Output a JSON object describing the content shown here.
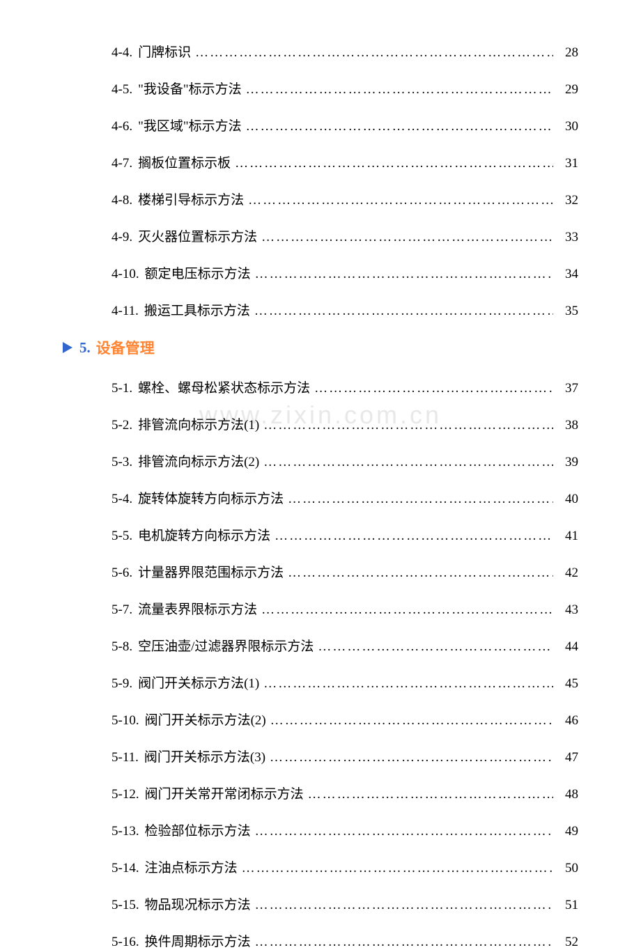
{
  "watermark": "www.zixin.com.cn",
  "entries_before": [
    {
      "num": "4-4.",
      "title": "门牌标识",
      "page": "28"
    },
    {
      "num": "4-5.",
      "title": "\"我设备\"标示方法",
      "page": "29"
    },
    {
      "num": "4-6.",
      "title": "\"我区域\"标示方法",
      "page": "30"
    },
    {
      "num": "4-7.",
      "title": "搁板位置标示板",
      "page": "31"
    },
    {
      "num": "4-8.",
      "title": "楼梯引导标示方法",
      "page": "32"
    },
    {
      "num": "4-9.",
      "title": "灭火器位置标示方法",
      "page": "33"
    },
    {
      "num": "4-10.",
      "title": "额定电压标示方法",
      "page": "34"
    },
    {
      "num": "4-11.",
      "title": "搬运工具标示方法",
      "page": "35"
    }
  ],
  "section": {
    "num": "5.",
    "title": "设备管理"
  },
  "entries_after": [
    {
      "num": "5-1.",
      "title": "螺栓、螺母松紧状态标示方法",
      "page": "37"
    },
    {
      "num": "5-2.",
      "title": "排管流向标示方法(1)",
      "page": "38"
    },
    {
      "num": "5-3.",
      "title": "排管流向标示方法(2)",
      "page": "39"
    },
    {
      "num": "5-4.",
      "title": "旋转体旋转方向标示方法",
      "page": "40"
    },
    {
      "num": "5-5.",
      "title": "电机旋转方向标示方法",
      "page": "41"
    },
    {
      "num": "5-6.",
      "title": "计量器界限范围标示方法",
      "page": "42"
    },
    {
      "num": "5-7.",
      "title": "流量表界限标示方法",
      "page": "43"
    },
    {
      "num": "5-8.",
      "title": "空压油壶/过滤器界限标示方法",
      "page": "44"
    },
    {
      "num": "5-9.",
      "title": "阀门开关标示方法(1)",
      "page": "45"
    },
    {
      "num": "5-10.",
      "title": "阀门开关标示方法(2)",
      "page": "46"
    },
    {
      "num": "5-11.",
      "title": "阀门开关标示方法(3)",
      "page": "47"
    },
    {
      "num": "5-12.",
      "title": "阀门开关常开常闭标示方法",
      "page": "48"
    },
    {
      "num": "5-13.",
      "title": "检验部位标示方法",
      "page": "49"
    },
    {
      "num": "5-14.",
      "title": "注油点标示方法",
      "page": "50"
    },
    {
      "num": "5-15.",
      "title": "物品现况标示方法",
      "page": "51"
    },
    {
      "num": "5-16.",
      "title": "换件周期标示方法",
      "page": "52"
    }
  ],
  "dots": "………………………………………………………………………………………………………………"
}
